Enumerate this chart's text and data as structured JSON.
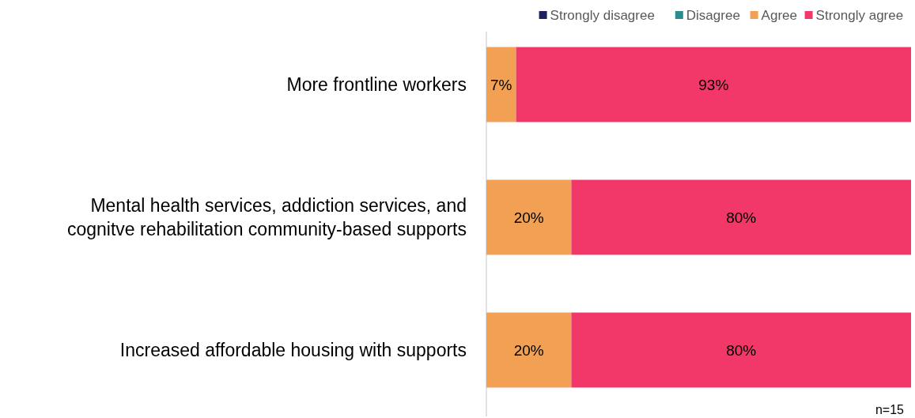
{
  "chart_data": {
    "type": "bar",
    "orientation": "horizontal",
    "stacked": true,
    "categories": [
      "More frontline workers",
      "Mental health services, addiction services, and cognitve rehabilitation community-based supports",
      "Increased affordable housing with supports"
    ],
    "series": [
      {
        "name": "Strongly disagree",
        "color": "#1f2060",
        "values": [
          0,
          0,
          0
        ],
        "value_labels": [
          null,
          null,
          null
        ]
      },
      {
        "name": "Disagree",
        "color": "#2a8c8c",
        "values": [
          0,
          0,
          0
        ],
        "value_labels": [
          null,
          null,
          null
        ]
      },
      {
        "name": "Agree",
        "color": "#f2a154",
        "values": [
          7,
          20,
          20
        ],
        "value_labels": [
          "7%",
          "20%",
          "20%"
        ]
      },
      {
        "name": "Strongly agree",
        "color": "#f23869",
        "values": [
          93,
          80,
          80
        ],
        "value_labels": [
          "93%",
          "80%",
          "80%"
        ]
      }
    ],
    "xlim": [
      0,
      100
    ],
    "legend": "top right",
    "tick_labels": "y",
    "annotations": [
      "n=15"
    ]
  }
}
